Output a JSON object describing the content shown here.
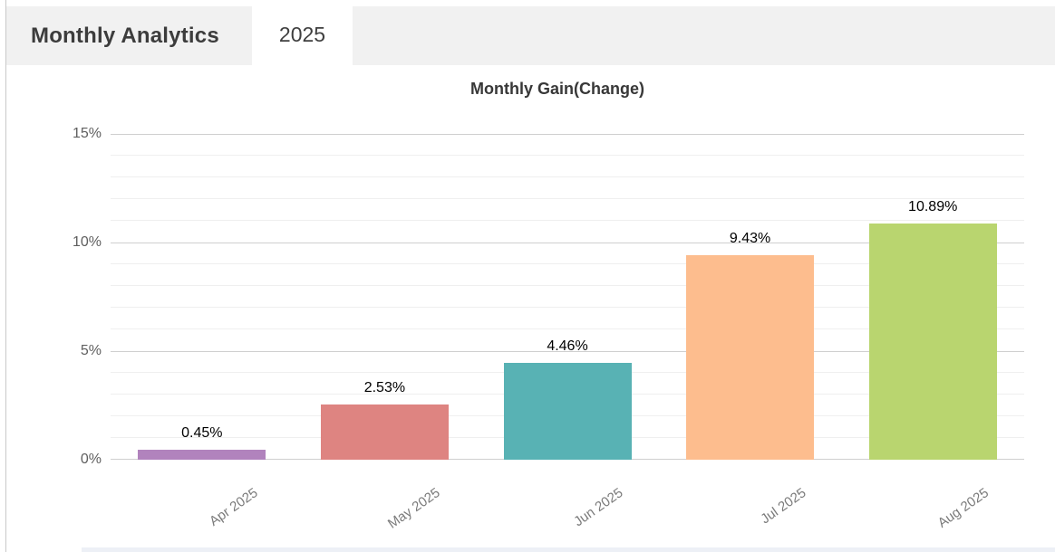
{
  "header": {
    "title": "Monthly Analytics",
    "tab": "2025"
  },
  "chart_data": {
    "type": "bar",
    "title": "Monthly Gain(Change)",
    "categories": [
      "Apr 2025",
      "May 2025",
      "Jun 2025",
      "Jul 2025",
      "Aug 2025"
    ],
    "values": [
      0.45,
      2.53,
      4.46,
      9.43,
      10.89
    ],
    "value_labels": [
      "0.45%",
      "2.53%",
      "4.46%",
      "9.43%",
      "10.89%"
    ],
    "bar_colors": [
      "#b183bd",
      "#de8481",
      "#58b2b4",
      "#fdbd8e",
      "#b9d56f"
    ],
    "xlabel": "",
    "ylabel": "",
    "ylim": [
      0,
      15
    ],
    "y_major_ticks": [
      0,
      5,
      10,
      15
    ],
    "y_tick_labels": [
      "0%",
      "5%",
      "10%",
      "15%"
    ],
    "y_minor_step": 1,
    "grid": true,
    "legend": "none"
  },
  "colors": {
    "header_bg": "#f1f1f1",
    "tab_bg": "#ffffff",
    "header_text": "#3c3c3c",
    "grid_major": "#cfcfcf",
    "grid_minor": "#efefef",
    "y_label_text": "#5f5f5f",
    "x_label_text": "#7a7a7a",
    "value_label_text": "#000000"
  }
}
